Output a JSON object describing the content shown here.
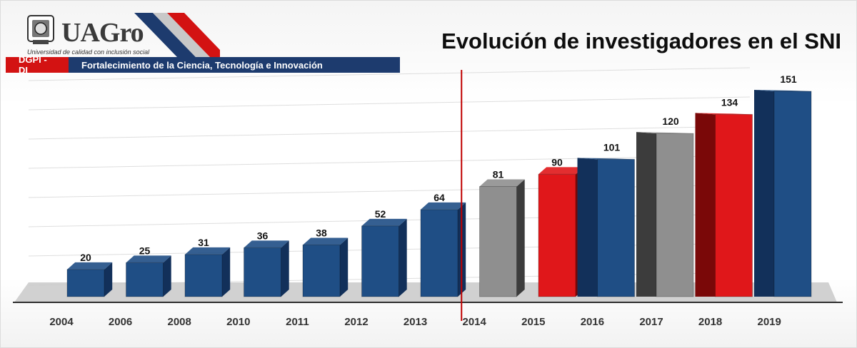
{
  "header": {
    "logo_text": "UAGro",
    "logo_subtitle": "Universidad de calidad con inclusión social",
    "banner_left": "DGPI - DI",
    "banner_right": "Fortalecimiento de la Ciencia, Tecnología e Innovación"
  },
  "colors": {
    "blue": "#1f4e85",
    "blue_dark": "#12305a",
    "gray": "#8f8f8f",
    "gray_dark": "#3c3c3c",
    "red": "#e0171a",
    "red_dark": "#7a0808",
    "divider": "#c00000",
    "floor": "#c9c9c9"
  },
  "chart_data": {
    "type": "bar",
    "title": "Evolución de investigadores en el SNI",
    "categories": [
      "2004",
      "2006",
      "2008",
      "2010",
      "2011",
      "2012",
      "2013",
      "2014",
      "2015",
      "2016",
      "2017",
      "2018",
      "2019"
    ],
    "values": [
      20,
      25,
      31,
      36,
      38,
      52,
      64,
      81,
      90,
      101,
      120,
      134,
      151
    ],
    "bar_colors": [
      "blue",
      "blue",
      "blue",
      "blue",
      "blue",
      "blue",
      "blue",
      "gray",
      "red",
      "blue",
      "gray",
      "red",
      "blue"
    ],
    "ylim": [
      0,
      160
    ],
    "grid": true,
    "data_labels": true,
    "divider_after_category": "2013"
  }
}
